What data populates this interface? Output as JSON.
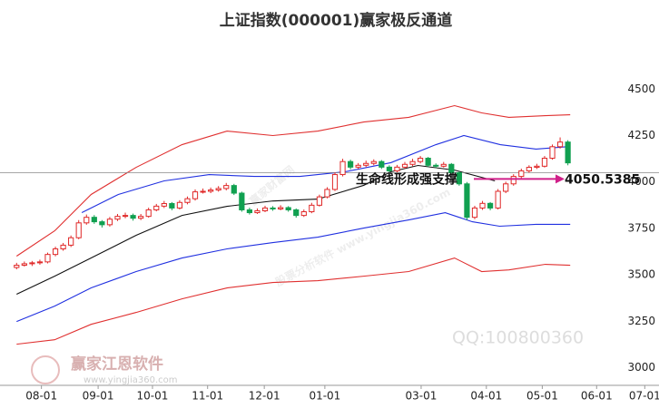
{
  "chart_data": {
    "type": "candlestick",
    "title": "上证指数(000001)赢家极反通道",
    "up_color": "#e02828",
    "down_color": "#10a050",
    "xlim": [
      -0.5,
      82.5
    ],
    "ylim": [
      2930,
      4760
    ],
    "yticks": [
      3000,
      3250,
      3500,
      3750,
      4000,
      4250,
      4500
    ],
    "xticks": [
      {
        "value": 3.2,
        "label": "08-01"
      },
      {
        "value": 10.5,
        "label": "09-01"
      },
      {
        "value": 17.5,
        "label": "10-01"
      },
      {
        "value": 24.6,
        "label": "11-01"
      },
      {
        "value": 31.9,
        "label": "12-01"
      },
      {
        "value": 39.7,
        "label": "01-01"
      },
      {
        "value": 52.1,
        "label": "03-01"
      },
      {
        "value": 60.5,
        "label": "04-01"
      },
      {
        "value": 67.7,
        "label": "05-01"
      },
      {
        "value": 74.7,
        "label": "06-01"
      },
      {
        "value": 80.9,
        "label": "07-01"
      }
    ],
    "open": [
      3540,
      3552,
      3560,
      3565,
      3570,
      3610,
      3640,
      3660,
      3700,
      3780,
      3810,
      3786,
      3770,
      3800,
      3815,
      3820,
      3805,
      3815,
      3850,
      3870,
      3884,
      3860,
      3890,
      3910,
      3947,
      3950,
      3957,
      3965,
      3981,
      3940,
      3850,
      3835,
      3845,
      3860,
      3855,
      3862,
      3850,
      3820,
      3840,
      3875,
      3920,
      3960,
      4040,
      4110,
      4080,
      4090,
      4100,
      4110,
      4080,
      4060,
      4080,
      4095,
      4110,
      4128,
      4090,
      4085,
      4095,
      4050,
      3990,
      3810,
      3860,
      3885,
      3860,
      3950,
      3990,
      4030,
      4060,
      4079,
      4085,
      4128,
      4190,
      4215
    ],
    "high": [
      3565,
      3572,
      3575,
      3582,
      3620,
      3652,
      3672,
      3712,
      3795,
      3825,
      3822,
      3795,
      3812,
      3828,
      3835,
      3830,
      3828,
      3862,
      3882,
      3898,
      3892,
      3902,
      3922,
      3960,
      3965,
      3970,
      3978,
      3995,
      3990,
      3948,
      3862,
      3858,
      3872,
      3870,
      3875,
      3870,
      3858,
      3852,
      3888,
      3932,
      3972,
      4052,
      4125,
      4120,
      4102,
      4115,
      4122,
      4118,
      4090,
      4092,
      4108,
      4125,
      4140,
      4135,
      4100,
      4108,
      4102,
      4058,
      4000,
      3872,
      3898,
      3892,
      3962,
      4002,
      4042,
      4072,
      4090,
      4098,
      4140,
      4202,
      4240,
      4225
    ],
    "low": [
      3530,
      3545,
      3548,
      3555,
      3562,
      3600,
      3630,
      3650,
      3692,
      3770,
      3775,
      3755,
      3760,
      3790,
      3805,
      3792,
      3795,
      3808,
      3842,
      3860,
      3848,
      3852,
      3880,
      3900,
      3938,
      3940,
      3948,
      3955,
      3930,
      3840,
      3825,
      3828,
      3838,
      3845,
      3848,
      3840,
      3808,
      3812,
      3832,
      3868,
      3912,
      3952,
      4030,
      4068,
      4070,
      4080,
      4090,
      4070,
      4048,
      4052,
      4072,
      4085,
      4100,
      4080,
      4075,
      4078,
      4040,
      3980,
      3795,
      3800,
      3850,
      3848,
      3852,
      3940,
      3980,
      4020,
      4050,
      4070,
      4078,
      4120,
      4180,
      4090
    ],
    "close": [
      3552,
      3560,
      3565,
      3570,
      3610,
      3640,
      3660,
      3700,
      3780,
      3810,
      3786,
      3770,
      3800,
      3815,
      3820,
      3805,
      3815,
      3850,
      3870,
      3884,
      3860,
      3890,
      3910,
      3947,
      3950,
      3957,
      3965,
      3981,
      3940,
      3850,
      3835,
      3845,
      3860,
      3855,
      3862,
      3850,
      3820,
      3840,
      3875,
      3920,
      3960,
      4040,
      4110,
      4080,
      4090,
      4100,
      4110,
      4080,
      4060,
      4080,
      4095,
      4110,
      4128,
      4090,
      4085,
      4095,
      4050,
      3990,
      3810,
      3860,
      3885,
      3860,
      3950,
      3990,
      4030,
      4060,
      4079,
      4085,
      4128,
      4190,
      4215,
      4103
    ],
    "lines": [
      {
        "color": "#e03030",
        "x": [
          0,
          4.9,
          9.6,
          15.4,
          21.3,
          27.1,
          33,
          38.8,
          44.7,
          50.5,
          56.4,
          59.9,
          63.4,
          68.1,
          71.3
        ],
        "values": [
          3601,
          3737,
          3933,
          4079,
          4201,
          4274,
          4250,
          4274,
          4323,
          4348,
          4411,
          4372,
          4348,
          4357,
          4362
        ]
      },
      {
        "color": "#2030e0",
        "x": [
          8.4,
          13.1,
          19,
          24.8,
          30.6,
          36.5,
          42.3,
          48.2,
          54,
          57.6,
          62.3,
          66.9,
          71.3
        ],
        "values": [
          3835,
          3933,
          4006,
          4040,
          4030,
          4030,
          4055,
          4104,
          4201,
          4250,
          4201,
          4177,
          4191
        ]
      },
      {
        "color": "#111111",
        "x": [
          0,
          4.9,
          9.6,
          15.4,
          21.3,
          27.1,
          33,
          38.8,
          44.7,
          48.2,
          51.7,
          56.4,
          61.6
        ],
        "values": [
          3396,
          3493,
          3591,
          3713,
          3820,
          3869,
          3898,
          3908,
          3982,
          4055,
          4089,
          4064,
          4006
        ]
      },
      {
        "color": "#2030e0",
        "x": [
          0,
          4.9,
          9.6,
          15.4,
          21.3,
          27.1,
          33,
          38.8,
          44.7,
          50.5,
          55.2,
          58.7,
          62.2,
          66.9,
          71.3
        ],
        "values": [
          3249,
          3332,
          3430,
          3518,
          3591,
          3640,
          3674,
          3703,
          3752,
          3796,
          3835,
          3786,
          3762,
          3772,
          3772
        ]
      },
      {
        "color": "#e03030",
        "x": [
          0,
          4.9,
          9.6,
          15.4,
          21.3,
          27.1,
          33,
          38.8,
          44.7,
          50.5,
          56.4,
          59.9,
          63.4,
          68.1,
          71.3
        ],
        "values": [
          3127,
          3151,
          3234,
          3298,
          3371,
          3430,
          3459,
          3469,
          3493,
          3518,
          3591,
          3518,
          3527,
          3557,
          3552
        ]
      }
    ],
    "annotation": {
      "text": "生命线形成强支撑",
      "value": 4050.5385,
      "value_label": "4050.5385",
      "color": "#d0208a"
    },
    "watermarks": [
      "赢家财富网",
      "股票分析软件 www.yingjia360.com",
      "QQ:100800360",
      "赢家江恩软件",
      "www.yingjia360.com"
    ]
  }
}
